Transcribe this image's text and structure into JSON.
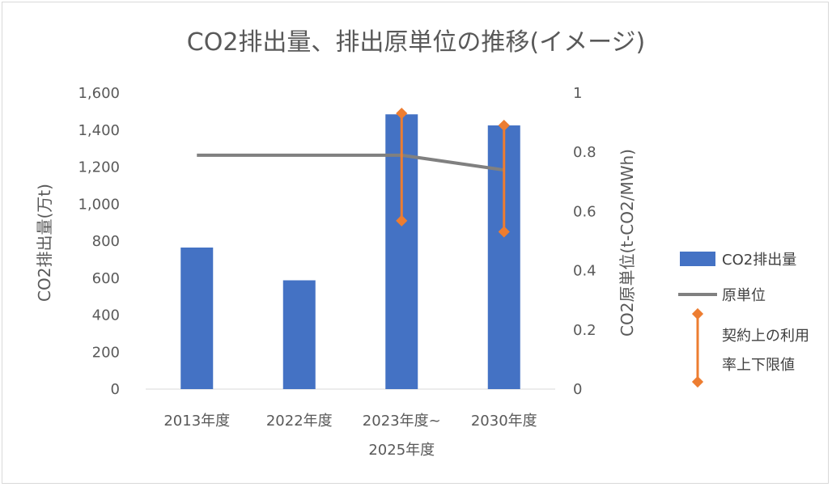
{
  "chart_data": {
    "type": "bar",
    "title": "CO2排出量、排出原単位の推移(イメージ)",
    "categories": [
      "2013年度",
      "2022年度",
      "2023年度~\n2025年度",
      "2030年度"
    ],
    "ylabel": "CO2排出量(万t)",
    "y2label": "CO2原単位(t-CO2/MWh)",
    "ylim": [
      0,
      1600
    ],
    "y2lim": [
      0,
      1
    ],
    "y_ticks": [
      "0",
      "200",
      "400",
      "600",
      "800",
      "1,000",
      "1,200",
      "1,400",
      "1,600"
    ],
    "y2_ticks": [
      "0",
      "0.2",
      "0.4",
      "0.6",
      "0.8",
      "1"
    ],
    "series": [
      {
        "name": "CO2排出量",
        "type": "bar",
        "axis": "left",
        "color": "#4472c4",
        "values": [
          765,
          588,
          1485,
          1425
        ]
      },
      {
        "name": "原単位",
        "type": "line",
        "axis": "right",
        "color": "#808080",
        "values": [
          0.79,
          0.79,
          0.79,
          0.74
        ]
      },
      {
        "name": "契約上の利用率上下限値",
        "type": "errorbar",
        "axis": "left",
        "color": "#ed7d31",
        "low": [
          null,
          null,
          910,
          850
        ],
        "high": [
          null,
          null,
          1490,
          1425
        ]
      }
    ],
    "legend": {
      "position": "right",
      "labels": [
        "CO2排出量",
        "原単位",
        "契約上の利用",
        "率上下限値"
      ]
    }
  }
}
